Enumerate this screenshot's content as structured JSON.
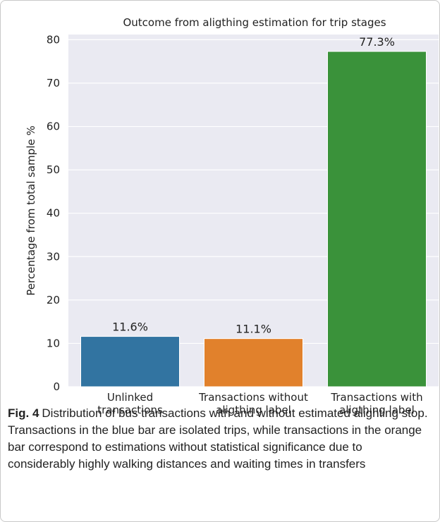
{
  "chart_data": {
    "type": "bar",
    "title": "Outcome from aligthing estimation for trip stages",
    "y_label": "Percentage from total sample %",
    "categories": [
      "Unlinked\ntransactions",
      "Transactions without\naligthing label",
      "Transactions with\naligthing label"
    ],
    "values": [
      11.6,
      11.1,
      77.3
    ],
    "value_labels": [
      "11.6%",
      "11.1%",
      "77.3%"
    ],
    "colors": [
      "#3274a1",
      "#e1812c",
      "#3a923a"
    ],
    "ylim": [
      0,
      81.2
    ],
    "yticks": [
      0,
      10,
      20,
      30,
      40,
      50,
      60,
      70,
      80
    ],
    "grid": true
  },
  "caption": {
    "label": "Fig. 4",
    "text": "Distribution of bus transactions with and without estimated alighting stop. Transactions in the blue bar are isolated trips, while transactions in the orange bar correspond to estimations without statistical significance due to considerably highly walking distances and waiting times in transfers"
  }
}
